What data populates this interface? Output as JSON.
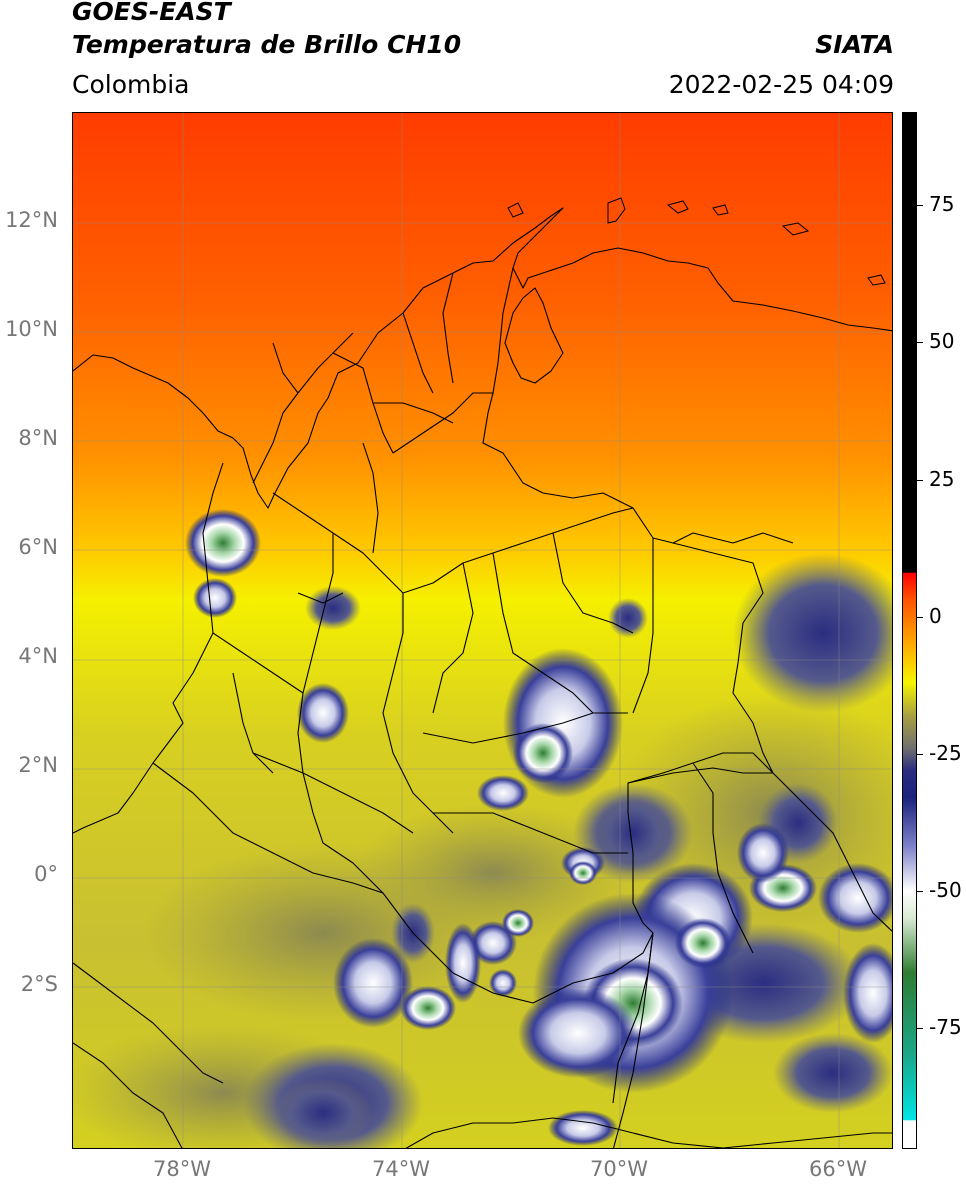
{
  "header": {
    "satellite": "GOES-EAST",
    "product": "Temperatura de Brillo CH10",
    "organization": "SIATA",
    "region": "Colombia",
    "datetime": "2022-02-25 04:09"
  },
  "map": {
    "lat_ticks": [
      "12°N",
      "10°N",
      "8°N",
      "6°N",
      "4°N",
      "2°N",
      "0°",
      "2°S"
    ],
    "lon_ticks": [
      "78°W",
      "74°W",
      "70°W",
      "66°W"
    ],
    "lon_range": [
      -80,
      -65
    ],
    "lat_range": [
      -5,
      14
    ],
    "gridlines": true
  },
  "colorbar": {
    "ticks": [
      "75",
      "50",
      "25",
      "0",
      "-25",
      "-50",
      "-75"
    ],
    "tick_values": [
      75,
      50,
      25,
      0,
      -25,
      -50,
      -75
    ],
    "range": [
      -97,
      92
    ],
    "stops": [
      {
        "v": -97,
        "c": "#ffffff"
      },
      {
        "v": -92,
        "c": "#ffffff"
      },
      {
        "v": -91.9,
        "c": "#00e5e5"
      },
      {
        "v": -80,
        "c": "#1aa88a"
      },
      {
        "v": -65,
        "c": "#2e7d32"
      },
      {
        "v": -55,
        "c": "#d9ead3"
      },
      {
        "v": -50,
        "c": "#ffffff"
      },
      {
        "v": -42,
        "c": "#7f83c9"
      },
      {
        "v": -33,
        "c": "#1a237e"
      },
      {
        "v": -28,
        "c": "#2b2d80"
      },
      {
        "v": -24,
        "c": "#707070"
      },
      {
        "v": -18,
        "c": "#a8a040"
      },
      {
        "v": -12,
        "c": "#f5f500"
      },
      {
        "v": -5,
        "c": "#ffaa00"
      },
      {
        "v": 3,
        "c": "#ff5500"
      },
      {
        "v": 8,
        "c": "#ff0000"
      },
      {
        "v": 8.1,
        "c": "#000000"
      },
      {
        "v": 92,
        "c": "#000000"
      }
    ]
  }
}
